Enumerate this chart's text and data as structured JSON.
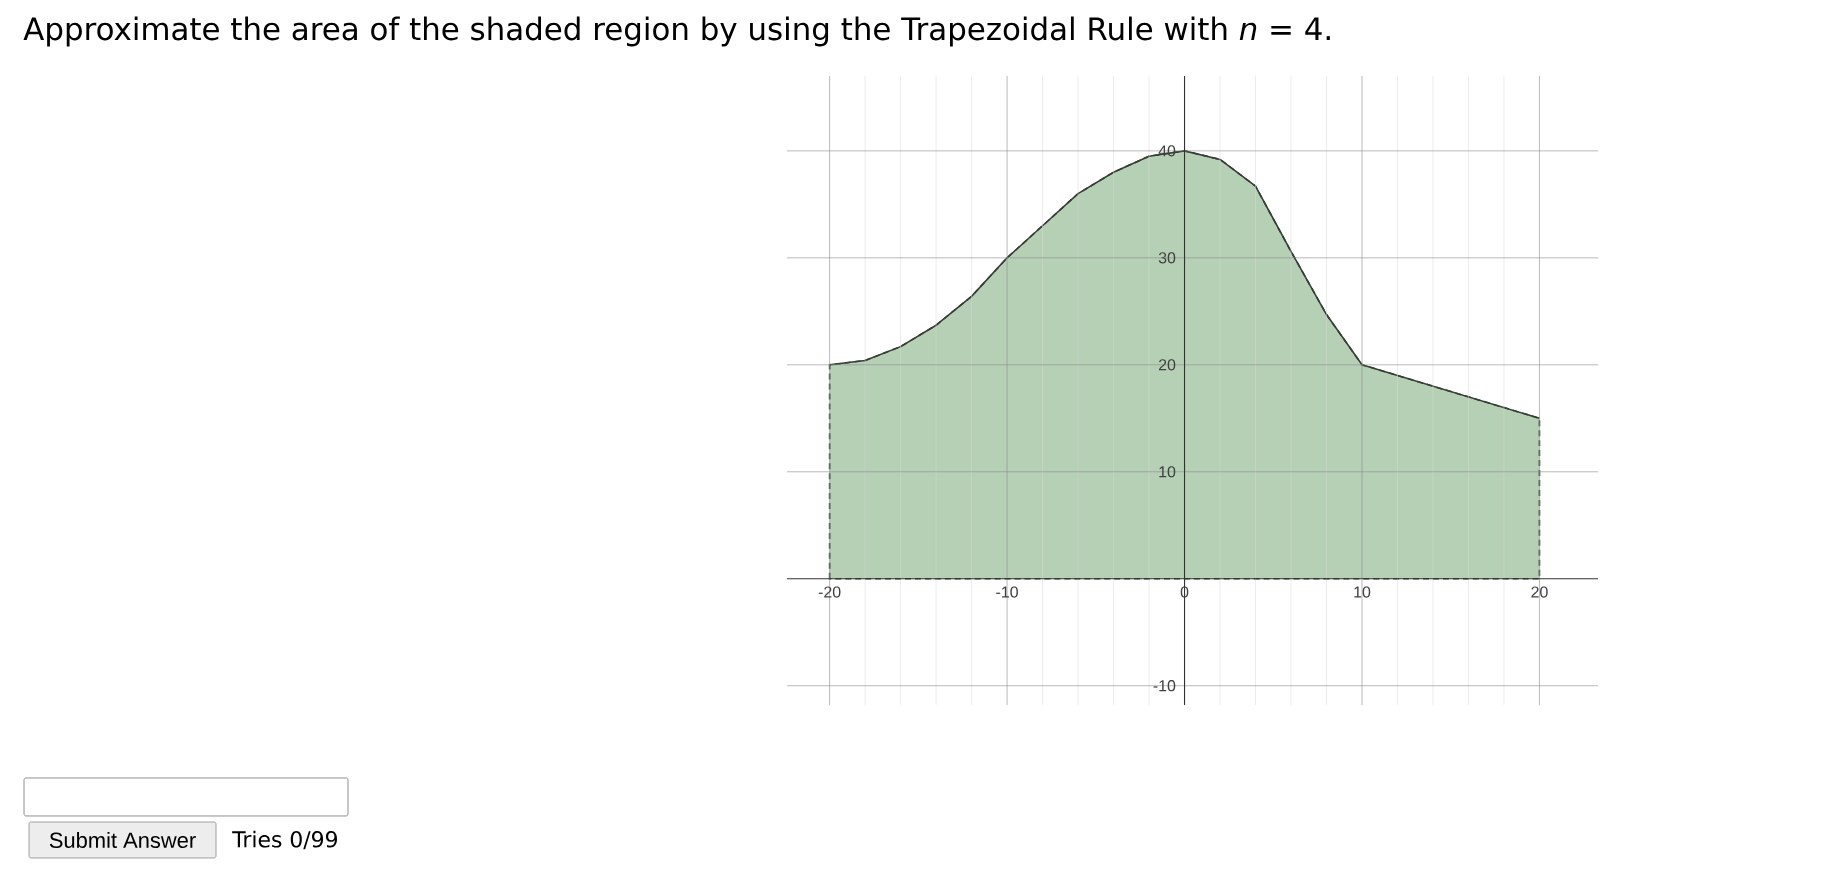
{
  "chart_data": {
    "type": "area",
    "title": "Approximate the area of the shaded region by using the Trapezoidal Rule with *n* = 4.",
    "x": [
      -20,
      -18,
      -16,
      -14,
      -12,
      -10,
      -8,
      -6,
      -4,
      -2,
      0,
      2,
      4,
      6,
      8,
      10,
      20
    ],
    "values": [
      20,
      20.4,
      21.7,
      23.7,
      26.4,
      30,
      33,
      36,
      38,
      39.5,
      40,
      39.2,
      36.7,
      30.6,
      24.7,
      20,
      15
    ],
    "color": "#b5d0b5",
    "xlim": [
      -22.4,
      23.3
    ],
    "ylim": [
      -11.8,
      47
    ],
    "xticks": [
      -20,
      -10,
      0,
      10,
      20
    ],
    "yticks": [
      -10,
      10,
      20,
      30,
      40
    ],
    "grid": true,
    "annotations": [
      "Submit Answer",
      "Tries 0/99"
    ]
  }
}
